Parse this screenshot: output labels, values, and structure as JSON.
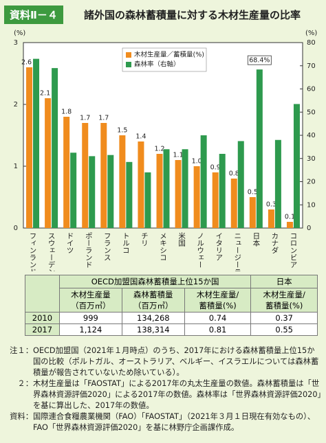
{
  "header": {
    "label": "資料Ⅱ－４",
    "title": "諸外国の森林蓄積量に対する木材生産量の比率"
  },
  "chart_data": {
    "type": "bar",
    "y_unit": "(%)",
    "y2_unit": "(%)",
    "categories": [
      "フィンランド",
      "スウェーデン",
      "ドイツ",
      "ポーランド",
      "フランス",
      "トルコ",
      "チリ",
      "メキシコ",
      "米国",
      "ノルウェー",
      "イタリア",
      "ニュージーランド",
      "日本",
      "カナダ",
      "コロンビア"
    ],
    "series": [
      {
        "name": "木材生産量／蓄積量(%)",
        "color": "#f08c1e",
        "values": [
          2.6,
          2.1,
          1.8,
          1.7,
          1.7,
          1.5,
          1.4,
          1.2,
          1.1,
          1.0,
          0.9,
          0.8,
          0.5,
          0.3,
          0.1
        ],
        "value_labels": [
          "2.6",
          "2.1",
          "1.8",
          "1.7",
          "1.7",
          "1.5",
          "1.4",
          "1.2",
          "1.1",
          "1.0",
          "0.9",
          "0.8",
          "0.5",
          "0.3",
          "0.1"
        ]
      },
      {
        "name": "森林率（右軸）",
        "color": "#2e9a4e",
        "axis": "y2",
        "values": [
          73,
          69,
          32.5,
          31,
          31.5,
          28.5,
          24,
          34,
          34,
          40,
          32,
          37.5,
          68.4,
          38,
          53.5
        ],
        "value_labels": [
          null,
          null,
          null,
          null,
          null,
          null,
          null,
          null,
          null,
          null,
          null,
          null,
          "68.4%",
          null,
          null
        ]
      }
    ],
    "ylim": [
      0,
      3
    ],
    "yticks": [
      0,
      1,
      2,
      3
    ],
    "y2lim": [
      0,
      80
    ],
    "y2ticks": [
      0,
      10,
      20,
      30,
      40,
      50,
      60,
      70,
      80
    ],
    "legend": "top-center"
  },
  "table": {
    "head1": [
      "OECD加盟国森林蓄積量上位15か国",
      "日本"
    ],
    "head2": [
      "木材生産量\n（百万㎥）",
      "森林蓄積量\n（百万㎥）",
      "木材生産量/\n蓄積量(%)",
      "木材生産量/\n蓄積量(%)"
    ],
    "rows": [
      [
        "2010",
        "999",
        "134,268",
        "0.74",
        "0.37"
      ],
      [
        "2017",
        "1,124",
        "138,314",
        "0.81",
        "0.55"
      ]
    ]
  },
  "notes": [
    {
      "label": "注１：",
      "text": "OECD加盟国（2021年１月時点）のうち、2017年における森林蓄積量上位15か国の比較（ポルトガル、オーストラリア、ベルギー、イスラエルについては森林蓄積量が報告されていないため除いている）。"
    },
    {
      "label": "２：",
      "text": "木材生産量は「FAOSTAT」による2017年の丸太生産量の数値。森林蓄積量は「世界森林資源評価2020」による2017年の数値。森林率は「世界森林資源評価2020」を基に算出した、2017年の数値。"
    },
    {
      "label": "資料：",
      "text": "国際連合食糧農業機関（FAO）「FAOSTAT」（2021年３月１日現在有効なもの）、FAO「世界森林資源評価2020」を基に林野庁企画課作成。"
    }
  ]
}
